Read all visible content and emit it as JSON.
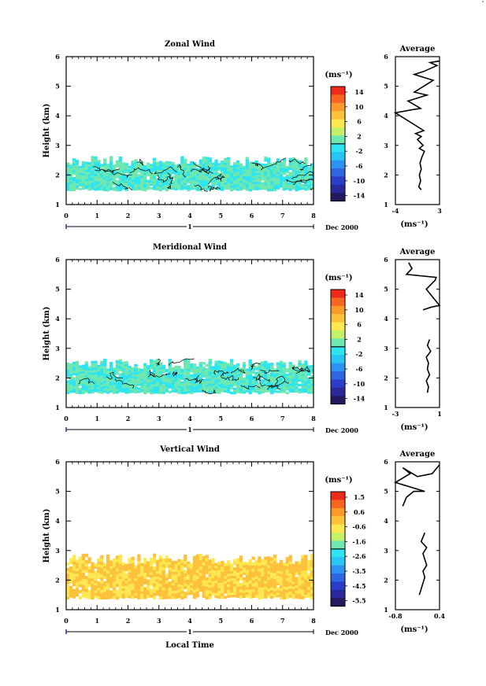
{
  "corner_mark": "'",
  "chart_data": [
    {
      "type": "heatmap",
      "title": "Zonal Wind",
      "ylabel": "Height (km)",
      "xlabel": "",
      "xlim": [
        0,
        8
      ],
      "ylim": [
        1,
        6
      ],
      "x_ticks": [
        "0",
        "1",
        "2",
        "3",
        "4",
        "5",
        "6",
        "7",
        "8"
      ],
      "y_ticks": [
        "1",
        "2",
        "3",
        "4",
        "5",
        "6"
      ],
      "date_label": "Dec 2000",
      "day_label": "1",
      "data_extent": {
        "x": [
          0,
          8
        ],
        "height": [
          1.45,
          2.65
        ]
      },
      "dominant_bins": [
        "-2 to 0",
        "0 to 2"
      ],
      "colorbar": {
        "unit": "(ms⁻¹)",
        "labels": [
          "14",
          "10",
          "6",
          "2",
          "-2",
          "-6",
          "-10",
          "-14"
        ],
        "colors": [
          "#ef2a1a",
          "#f86421",
          "#fb9a2a",
          "#fdc13c",
          "#ffe84f",
          "#c4f06a",
          "#6fe8b0",
          "#2ee4f0",
          "#28c5f4",
          "#2c94f0",
          "#2f66e0",
          "#2c3ec6",
          "#2a299c",
          "#25195e"
        ]
      },
      "average": {
        "title": "Average",
        "xlabel": "(ms⁻¹)",
        "x_ticks": [
          "-4",
          "3"
        ],
        "xlim": [
          -4,
          3
        ],
        "y_ticks": [
          "1",
          "2",
          "3",
          "4",
          "5",
          "6"
        ],
        "ylim": [
          1,
          6
        ],
        "profile": [
          [
            0.1,
            1.5
          ],
          [
            -0.3,
            1.6
          ],
          [
            0.0,
            1.8
          ],
          [
            -0.2,
            2.0
          ],
          [
            0.1,
            2.2
          ],
          [
            -0.1,
            2.4
          ],
          [
            0.2,
            2.6
          ],
          [
            0.6,
            2.8
          ],
          [
            -0.2,
            2.9
          ],
          [
            0.4,
            3.0
          ],
          [
            -0.5,
            3.2
          ],
          [
            0.1,
            3.3
          ],
          [
            -0.8,
            3.4
          ],
          [
            0.5,
            3.5
          ],
          [
            -4.0,
            4.1
          ],
          [
            -1.5,
            4.2
          ],
          [
            0.0,
            4.25
          ],
          [
            -2.0,
            4.5
          ],
          [
            1.0,
            4.7
          ],
          [
            -1.0,
            4.8
          ],
          [
            2.0,
            5.2
          ],
          [
            -1.0,
            5.4
          ],
          [
            0.5,
            5.5
          ],
          [
            2.6,
            5.7
          ],
          [
            1.5,
            5.8
          ],
          [
            3.0,
            5.85
          ]
        ]
      }
    },
    {
      "type": "heatmap",
      "title": "Meridional Wind",
      "ylabel": "Height (km)",
      "xlabel": "",
      "xlim": [
        0,
        8
      ],
      "ylim": [
        1,
        6
      ],
      "x_ticks": [
        "0",
        "1",
        "2",
        "3",
        "4",
        "5",
        "6",
        "7",
        "8"
      ],
      "y_ticks": [
        "1",
        "2",
        "3",
        "4",
        "5",
        "6"
      ],
      "date_label": "Dec 2000",
      "day_label": "1",
      "data_extent": {
        "x": [
          0,
          8
        ],
        "height": [
          1.45,
          2.65
        ]
      },
      "dominant_bins": [
        "-2 to 0",
        "0 to 2"
      ],
      "colorbar": {
        "unit": "(ms⁻¹)",
        "labels": [
          "14",
          "10",
          "6",
          "2",
          "-2",
          "-6",
          "-10",
          "-14"
        ],
        "colors": [
          "#ef2a1a",
          "#f86421",
          "#fb9a2a",
          "#fdc13c",
          "#ffe84f",
          "#c4f06a",
          "#6fe8b0",
          "#2ee4f0",
          "#28c5f4",
          "#2c94f0",
          "#2f66e0",
          "#2c3ec6",
          "#2a299c",
          "#25195e"
        ]
      },
      "average": {
        "title": "Average",
        "xlabel": "(ms⁻¹)",
        "x_ticks": [
          "-3",
          "1"
        ],
        "xlim": [
          -3,
          1
        ],
        "y_ticks": [
          "1",
          "2",
          "3",
          "4",
          "5",
          "6"
        ],
        "ylim": [
          1,
          6
        ],
        "profile": [
          [
            -0.1,
            1.5
          ],
          [
            0.0,
            1.7
          ],
          [
            -0.2,
            1.9
          ],
          [
            0.1,
            2.1
          ],
          [
            -0.1,
            2.3
          ],
          [
            0.0,
            2.5
          ],
          [
            -0.2,
            2.7
          ],
          [
            0.2,
            2.9
          ],
          [
            -0.1,
            3.1
          ],
          [
            0.1,
            3.3
          ],
          [
            -0.5,
            4.3
          ],
          [
            0.3,
            4.4
          ],
          [
            1.0,
            4.45
          ],
          [
            -0.2,
            5.0
          ],
          [
            0.6,
            5.3
          ],
          [
            0.7,
            5.4
          ],
          [
            -2.0,
            5.5
          ],
          [
            -1.5,
            5.7
          ],
          [
            -1.8,
            5.9
          ],
          [
            0.6,
            5.0
          ]
        ]
      }
    },
    {
      "type": "heatmap",
      "title": "Vertical Wind",
      "ylabel": "Height (km)",
      "xlabel": "Local Time",
      "xlim": [
        0,
        8
      ],
      "ylim": [
        1,
        6
      ],
      "x_ticks": [
        "0",
        "1",
        "2",
        "3",
        "4",
        "5",
        "6",
        "7",
        "8"
      ],
      "y_ticks": [
        "1",
        "2",
        "3",
        "4",
        "5",
        "6"
      ],
      "date_label": "Dec 2000",
      "day_label": "1",
      "data_extent": {
        "x": [
          0,
          8
        ],
        "height": [
          1.35,
          2.9
        ]
      },
      "dominant_bins": [
        "-0.3 to 0.3",
        "0.3 to 0.9"
      ],
      "colorbar": {
        "unit": "(ms⁻¹)",
        "labels": [
          "1.5",
          "0.6",
          "-0.6",
          "-1.6",
          "-2.6",
          "-3.5",
          "-4.5",
          "-5.5"
        ],
        "colors": [
          "#ef2a1a",
          "#f86421",
          "#fb9a2a",
          "#fdc13c",
          "#ffe84f",
          "#c4f06a",
          "#6fe8b0",
          "#2ee4f0",
          "#28c5f4",
          "#2c94f0",
          "#2f66e0",
          "#2c3ec6",
          "#2a299c",
          "#25195e"
        ]
      },
      "average": {
        "title": "Average",
        "xlabel": "(ms⁻¹)",
        "x_ticks": [
          "-0.8",
          "0.4"
        ],
        "xlim": [
          -0.8,
          0.4
        ],
        "y_ticks": [
          "1",
          "2",
          "3",
          "4",
          "5",
          "6"
        ],
        "ylim": [
          1,
          6
        ],
        "profile": [
          [
            -0.15,
            1.5
          ],
          [
            -0.1,
            1.7
          ],
          [
            -0.05,
            1.9
          ],
          [
            0.0,
            2.1
          ],
          [
            -0.05,
            2.3
          ],
          [
            0.05,
            2.5
          ],
          [
            0.0,
            2.7
          ],
          [
            -0.05,
            2.9
          ],
          [
            0.05,
            3.1
          ],
          [
            -0.1,
            3.3
          ],
          [
            0.0,
            3.6
          ],
          [
            -0.6,
            4.5
          ],
          [
            -0.5,
            4.8
          ],
          [
            -0.3,
            5.0
          ],
          [
            0.0,
            5.0
          ],
          [
            -0.8,
            5.3
          ],
          [
            -0.4,
            5.6
          ],
          [
            -0.6,
            5.8
          ],
          [
            -0.2,
            5.5
          ],
          [
            0.2,
            5.6
          ],
          [
            0.4,
            5.9
          ]
        ]
      }
    }
  ]
}
